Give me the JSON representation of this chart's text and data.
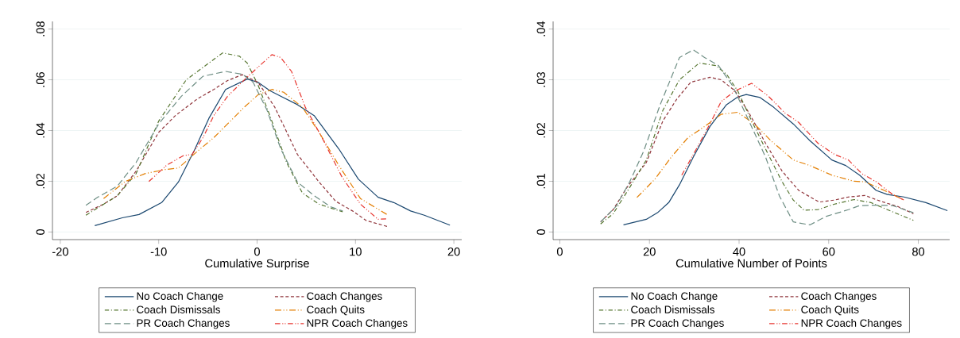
{
  "chart_data": [
    {
      "type": "line",
      "xlabel": "Cumulative Surprise",
      "xlim": [
        -20.8,
        20.8
      ],
      "ylim": [
        -0.003,
        0.083
      ],
      "xticks": [
        -20,
        -10,
        0,
        10,
        20
      ],
      "yticks": [
        {
          "value": 0,
          "label": "0"
        },
        {
          "value": 0.02,
          "label": ".02"
        },
        {
          "value": 0.04,
          "label": ".04"
        },
        {
          "value": 0.06,
          "label": ".06"
        },
        {
          "value": 0.08,
          "label": ".08"
        }
      ],
      "grid": "y",
      "legend": "bottom",
      "series": [
        {
          "name": "No Coach Change",
          "color": "#1a476f",
          "line_style": "solid",
          "x": [
            -16.5,
            -13.7,
            -12.0,
            -9.7,
            -8.0,
            -6.3,
            -4.9,
            -3.2,
            -1.0,
            0.1,
            1.3,
            2.4,
            4.1,
            5.8,
            8.3,
            10.3,
            12.3,
            13.9,
            15.6,
            17.0,
            19.6
          ],
          "values": [
            0.0025,
            0.0056,
            0.0069,
            0.0116,
            0.0197,
            0.0328,
            0.0448,
            0.0562,
            0.0603,
            0.059,
            0.0557,
            0.0535,
            0.0502,
            0.0459,
            0.0328,
            0.0208,
            0.0137,
            0.0116,
            0.0083,
            0.0066,
            0.0027
          ]
        },
        {
          "name": "Coach Changes",
          "color": "#90353b",
          "line_style": "dashed",
          "x": [
            -17.4,
            -15.6,
            -14.2,
            -12.3,
            -10.0,
            -8.3,
            -6.1,
            -4.4,
            -3.0,
            -1.5,
            0.1,
            1.8,
            4.1,
            6.3,
            8.0,
            9.7,
            11.1,
            13.4
          ],
          "values": [
            0.0077,
            0.011,
            0.0143,
            0.024,
            0.0393,
            0.0459,
            0.0524,
            0.0562,
            0.0597,
            0.062,
            0.059,
            0.0492,
            0.0306,
            0.0197,
            0.0121,
            0.0083,
            0.0045,
            0.002
          ]
        },
        {
          "name": "Coach Dismissals",
          "color": "#55752f",
          "line_style": "dashed",
          "x": [
            -17.4,
            -14.2,
            -12.3,
            -10.0,
            -7.2,
            -4.9,
            -3.5,
            -1.8,
            -1.0,
            0.1,
            1.3,
            3.0,
            4.6,
            6.3,
            8.0,
            8.7
          ],
          "values": [
            0.0066,
            0.0143,
            0.023,
            0.0437,
            0.06,
            0.0666,
            0.0706,
            0.0693,
            0.0666,
            0.0579,
            0.0459,
            0.0274,
            0.0154,
            0.011,
            0.0088,
            0.008
          ]
        },
        {
          "name": "Coach Quits",
          "color": "#e37e00",
          "line_style": "dashed",
          "x": [
            -15.6,
            -13.4,
            -11.4,
            -9.4,
            -8.0,
            -6.1,
            -4.4,
            -3.0,
            -1.3,
            0.1,
            1.5,
            2.7,
            4.6,
            6.3,
            8.3,
            10.5,
            13.2
          ],
          "values": [
            0.0132,
            0.0199,
            0.023,
            0.0246,
            0.0252,
            0.0317,
            0.0372,
            0.0426,
            0.0492,
            0.0541,
            0.0562,
            0.0551,
            0.0492,
            0.0393,
            0.0263,
            0.0132,
            0.0069
          ]
        },
        {
          "name": "PR Coach Changes",
          "color": "#6e8e84",
          "line_style": "dashed",
          "x": [
            -17.4,
            -16.2,
            -14.2,
            -12.3,
            -10.0,
            -7.7,
            -5.5,
            -3.2,
            -1.5,
            -0.4,
            1.0,
            2.4,
            4.1,
            5.8,
            7.5,
            8.7
          ],
          "values": [
            0.0105,
            0.0137,
            0.0181,
            0.0274,
            0.0426,
            0.0535,
            0.0614,
            0.0633,
            0.0622,
            0.059,
            0.0481,
            0.0328,
            0.0197,
            0.0143,
            0.0099,
            0.0083
          ]
        },
        {
          "name": "NPR Coach Changes",
          "color": "#e8352e",
          "line_style": "dashed",
          "x": [
            -11.0,
            -9.2,
            -7.5,
            -6.6,
            -5.5,
            -4.4,
            -3.0,
            -1.0,
            0.1,
            1.5,
            2.4,
            3.5,
            4.9,
            6.6,
            8.6,
            10.5,
            12.3,
            13.2
          ],
          "values": [
            0.0199,
            0.0263,
            0.0301,
            0.0306,
            0.0372,
            0.0459,
            0.0535,
            0.0611,
            0.065,
            0.0699,
            0.0688,
            0.0633,
            0.0492,
            0.0372,
            0.0219,
            0.011,
            0.005,
            0.0052
          ]
        }
      ]
    },
    {
      "type": "line",
      "xlabel": "Cumulative Number of Points",
      "xlim": [
        -1.5,
        87
      ],
      "ylim": [
        -0.0015,
        0.0415
      ],
      "xticks": [
        0,
        20,
        40,
        60,
        80
      ],
      "yticks": [
        {
          "value": 0,
          "label": "0"
        },
        {
          "value": 0.01,
          "label": ".01"
        },
        {
          "value": 0.02,
          "label": ".02"
        },
        {
          "value": 0.03,
          "label": ".03"
        },
        {
          "value": 0.04,
          "label": ".04"
        }
      ],
      "grid": "y",
      "legend": "bottom",
      "series": [
        {
          "name": "No Coach Change",
          "color": "#1a476f",
          "line_style": "solid",
          "x": [
            14.2,
            19.3,
            21.8,
            24.3,
            26.7,
            29.8,
            33.5,
            37.2,
            39.7,
            41.6,
            44.7,
            47.7,
            52.1,
            55.8,
            60.7,
            63.8,
            66.9,
            70.6,
            73.1,
            76.8,
            81.7,
            86.5
          ],
          "values": [
            0.0014,
            0.0025,
            0.0038,
            0.0058,
            0.0093,
            0.0148,
            0.0208,
            0.0251,
            0.0266,
            0.0271,
            0.0265,
            0.0246,
            0.0213,
            0.018,
            0.0142,
            0.0131,
            0.0112,
            0.0082,
            0.0074,
            0.0069,
            0.0058,
            0.0042
          ]
        },
        {
          "name": "Coach Changes",
          "color": "#90353b",
          "line_style": "dashed",
          "x": [
            9.1,
            11.9,
            15.0,
            19.3,
            23.0,
            26.1,
            29.2,
            33.5,
            36.0,
            39.1,
            42.2,
            45.9,
            49.6,
            53.3,
            57.9,
            61.3,
            64.4,
            68.1,
            71.8,
            75.5,
            78.9
          ],
          "values": [
            0.002,
            0.0044,
            0.0088,
            0.0137,
            0.0219,
            0.0262,
            0.0295,
            0.0305,
            0.03,
            0.0278,
            0.0235,
            0.0175,
            0.012,
            0.0082,
            0.0059,
            0.0063,
            0.0069,
            0.0072,
            0.006,
            0.005,
            0.0036
          ]
        },
        {
          "name": "Coach Dismissals",
          "color": "#55752f",
          "line_style": "dashed",
          "x": [
            9.1,
            11.9,
            15.6,
            19.3,
            23.0,
            26.7,
            31.1,
            34.8,
            37.2,
            39.7,
            42.8,
            46.5,
            49.6,
            52.1,
            54.5,
            57.6,
            61.3,
            65.7,
            69.4,
            73.1,
            78.9
          ],
          "values": [
            0.0016,
            0.0036,
            0.0088,
            0.0142,
            0.024,
            0.03,
            0.0333,
            0.0328,
            0.0311,
            0.0278,
            0.0219,
            0.0153,
            0.0099,
            0.0063,
            0.0043,
            0.0044,
            0.0055,
            0.0064,
            0.0058,
            0.0044,
            0.0023
          ]
        },
        {
          "name": "Coach Quits",
          "color": "#e37e00",
          "line_style": "dashed",
          "x": [
            17.2,
            21.2,
            24.9,
            28.6,
            32.3,
            36.0,
            39.7,
            43.4,
            47.1,
            52.1,
            55.8,
            60.7,
            65.7,
            68.1,
            72.4,
            76.8
          ],
          "values": [
            0.0068,
            0.0104,
            0.0148,
            0.0186,
            0.0208,
            0.0232,
            0.0236,
            0.0213,
            0.018,
            0.0142,
            0.0131,
            0.0112,
            0.01,
            0.0099,
            0.0082,
            0.0063
          ]
        },
        {
          "name": "PR Coach Changes",
          "color": "#6e8e84",
          "line_style": "dashed",
          "x": [
            9.1,
            12.5,
            15.6,
            18.7,
            22.4,
            26.7,
            29.8,
            32.3,
            35.4,
            38.5,
            42.2,
            45.9,
            49.0,
            52.1,
            55.8,
            59.5,
            64.4,
            66.9,
            70.6,
            74.3,
            78.9
          ],
          "values": [
            0.002,
            0.005,
            0.0099,
            0.0159,
            0.0251,
            0.0344,
            0.0359,
            0.0344,
            0.0328,
            0.0289,
            0.0219,
            0.0148,
            0.0071,
            0.002,
            0.0014,
            0.0031,
            0.0044,
            0.0052,
            0.0053,
            0.0052,
            0.0038
          ]
        },
        {
          "name": "NPR Coach Changes",
          "color": "#e8352e",
          "line_style": "dashed",
          "x": [
            27.2,
            30.5,
            33.5,
            36.0,
            39.1,
            42.8,
            46.5,
            50.2,
            53.3,
            57.6,
            61.3,
            64.4,
            67.4,
            70.6,
            74.3,
            76.8
          ],
          "values": [
            0.0112,
            0.0164,
            0.0213,
            0.0257,
            0.0278,
            0.0293,
            0.0268,
            0.0235,
            0.0216,
            0.0175,
            0.0153,
            0.0142,
            0.0115,
            0.0099,
            0.0074,
            0.0063
          ]
        }
      ]
    }
  ]
}
